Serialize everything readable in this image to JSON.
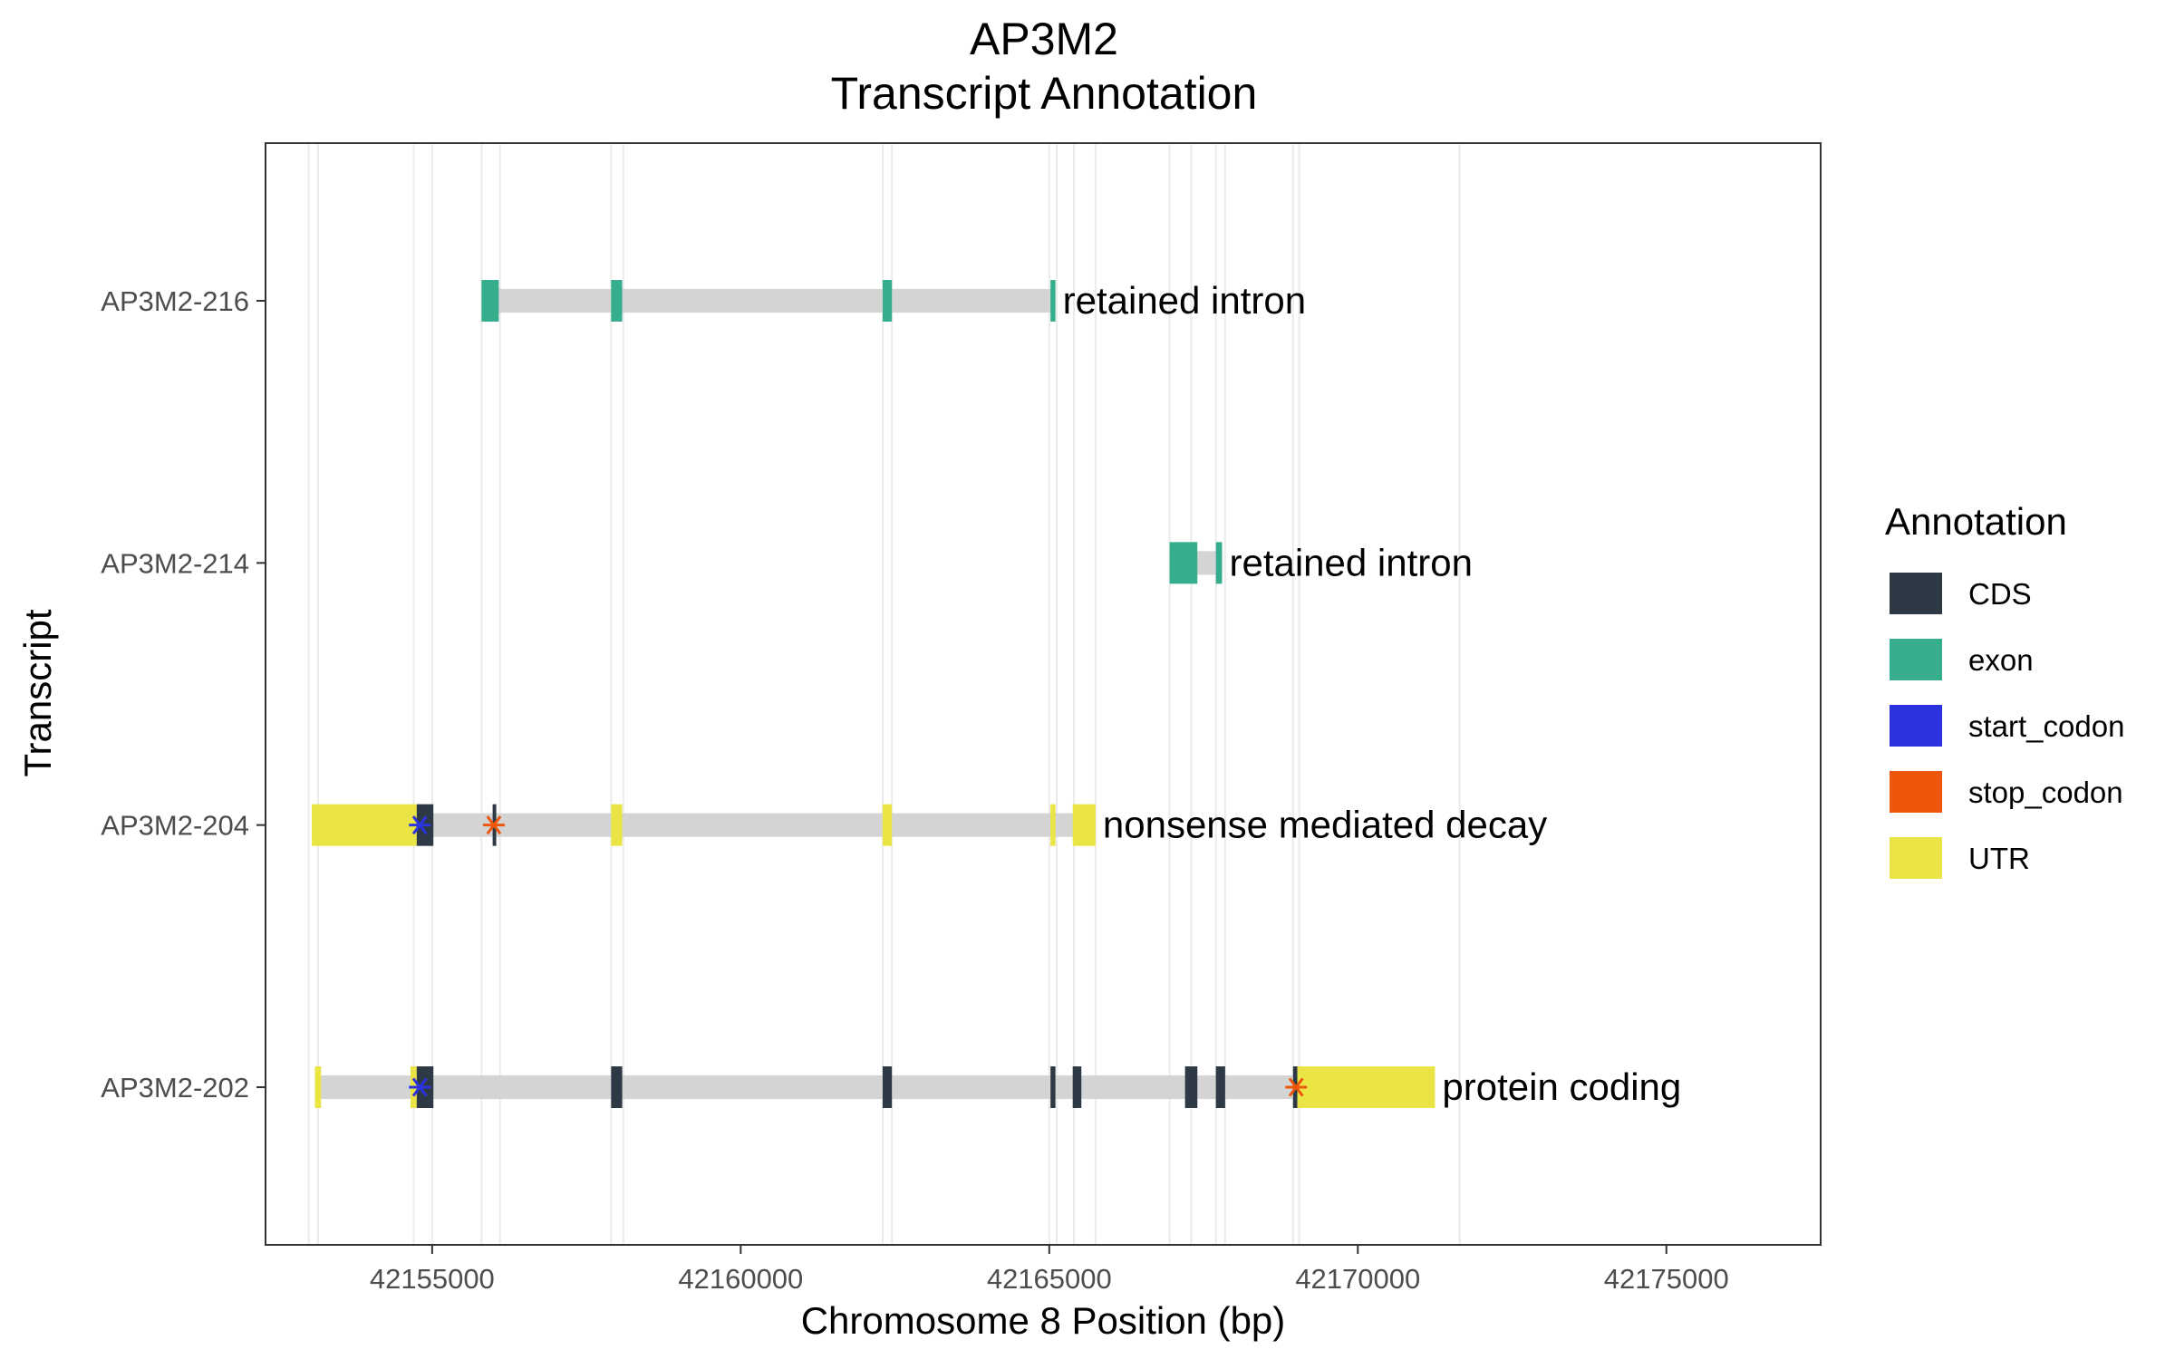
{
  "chart_data": {
    "type": "gene-transcript-annotation",
    "title": "AP3M2",
    "subtitle": "Transcript Annotation",
    "xlabel": "Chromosome 8 Position (bp)",
    "ylabel": "Transcript",
    "xlim": [
      42152300,
      42177500
    ],
    "xticks": [
      42155000,
      42160000,
      42165000,
      42170000,
      42175000
    ],
    "x_tick_labels": [
      "42155000",
      "42160000",
      "42165000",
      "42170000",
      "42175000"
    ],
    "grid": "vertical lines at feature boundaries",
    "legend": {
      "title": "Annotation",
      "position": "right",
      "entries": [
        {
          "name": "CDS",
          "color": "#2d3a45"
        },
        {
          "name": "exon",
          "color": "#36ae8e"
        },
        {
          "name": "start_codon",
          "color": "#2b33de"
        },
        {
          "name": "stop_codon",
          "color": "#ee560b"
        },
        {
          "name": "UTR",
          "color": "#eae444"
        }
      ]
    },
    "intron_color": "#d4d4d4",
    "transcripts": [
      {
        "name": "AP3M2-216",
        "biotype": "retained intron",
        "start": 42155800,
        "end": 42165100,
        "features": [
          {
            "type": "exon",
            "start": 42155800,
            "end": 42156080
          },
          {
            "type": "exon",
            "start": 42157900,
            "end": 42158080
          },
          {
            "type": "exon",
            "start": 42162300,
            "end": 42162450
          },
          {
            "type": "exon",
            "start": 42165020,
            "end": 42165100
          }
        ]
      },
      {
        "name": "AP3M2-214",
        "biotype": "retained intron",
        "start": 42166950,
        "end": 42167800,
        "features": [
          {
            "type": "exon",
            "start": 42166950,
            "end": 42167400
          },
          {
            "type": "exon",
            "start": 42167700,
            "end": 42167800
          }
        ]
      },
      {
        "name": "AP3M2-204",
        "biotype": "nonsense mediated decay",
        "start": 42153050,
        "end": 42165750,
        "features": [
          {
            "type": "UTR",
            "start": 42153050,
            "end": 42154750
          },
          {
            "type": "CDS",
            "start": 42154750,
            "end": 42155020
          },
          {
            "type": "CDS",
            "start": 42155980,
            "end": 42156030
          },
          {
            "type": "UTR",
            "start": 42157900,
            "end": 42158080
          },
          {
            "type": "UTR",
            "start": 42162300,
            "end": 42162450
          },
          {
            "type": "UTR",
            "start": 42165020,
            "end": 42165100
          },
          {
            "type": "UTR",
            "start": 42165380,
            "end": 42165750
          },
          {
            "type": "start_codon",
            "position": 42154800
          },
          {
            "type": "stop_codon",
            "position": 42156000
          }
        ]
      },
      {
        "name": "AP3M2-202",
        "biotype": "protein coding",
        "start": 42153100,
        "end": 42171250,
        "features": [
          {
            "type": "UTR",
            "start": 42153100,
            "end": 42153200
          },
          {
            "type": "UTR",
            "start": 42154650,
            "end": 42154750
          },
          {
            "type": "CDS",
            "start": 42154750,
            "end": 42155020
          },
          {
            "type": "CDS",
            "start": 42157900,
            "end": 42158080
          },
          {
            "type": "CDS",
            "start": 42162300,
            "end": 42162450
          },
          {
            "type": "CDS",
            "start": 42165020,
            "end": 42165100
          },
          {
            "type": "CDS",
            "start": 42165380,
            "end": 42165520
          },
          {
            "type": "CDS",
            "start": 42167200,
            "end": 42167400
          },
          {
            "type": "CDS",
            "start": 42167700,
            "end": 42167850
          },
          {
            "type": "CDS",
            "start": 42168950,
            "end": 42169020
          },
          {
            "type": "UTR",
            "start": 42169020,
            "end": 42171250
          },
          {
            "type": "start_codon",
            "position": 42154800
          },
          {
            "type": "stop_codon",
            "position": 42169000
          }
        ]
      }
    ],
    "gridlines_x": [
      42153000,
      42153150,
      42154700,
      42155000,
      42155800,
      42156100,
      42157900,
      42158100,
      42162300,
      42162450,
      42165000,
      42165120,
      42165400,
      42165750,
      42166950,
      42167300,
      42167700,
      42167850,
      42168950,
      42169050,
      42171650
    ]
  }
}
